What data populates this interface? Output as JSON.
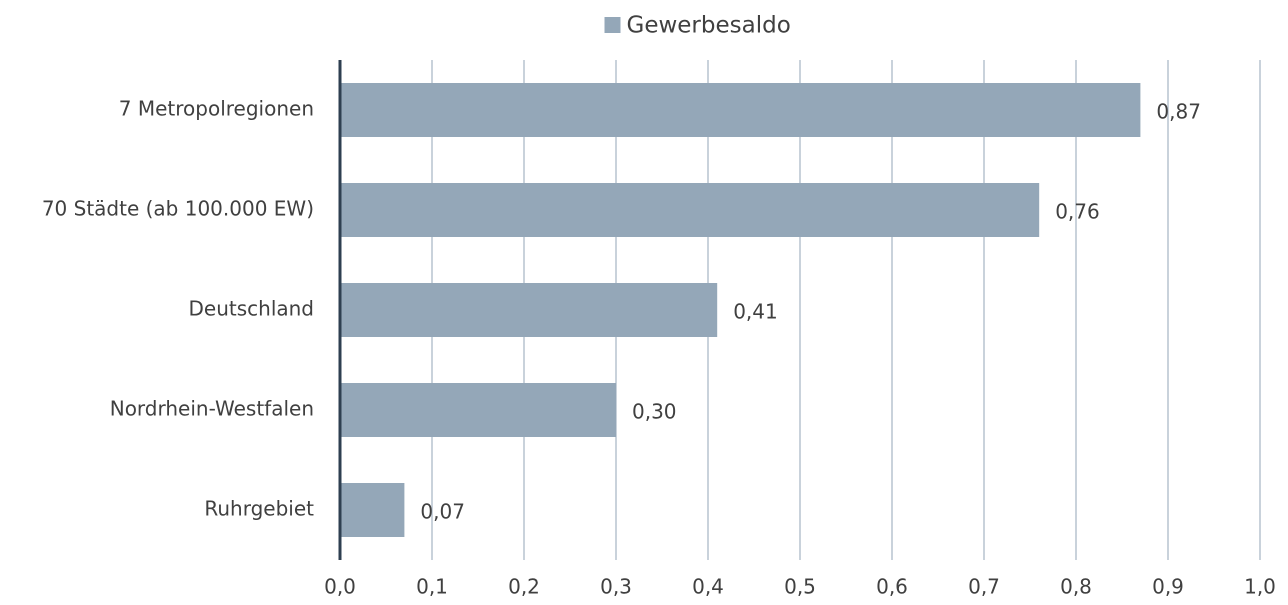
{
  "chart_data": {
    "type": "bar",
    "orientation": "horizontal",
    "categories": [
      "7 Metropolregionen",
      "70 Städte (ab 100.000 EW)",
      "Deutschland",
      "Nordrhein-Westfalen",
      "Ruhrgebiet"
    ],
    "series": [
      {
        "name": "Gewerbesaldo",
        "color": "#94a7b8",
        "values": [
          0.87,
          0.76,
          0.41,
          0.3,
          0.07
        ],
        "value_labels": [
          "0,87",
          "0,76",
          "0,41",
          "0,30",
          "0,07"
        ]
      }
    ],
    "xlim": [
      0,
      1
    ],
    "xticks": [
      {
        "value": 0,
        "label": "0,0"
      },
      {
        "value": 0.1,
        "label": "0,1"
      },
      {
        "value": 0.2,
        "label": "0,2"
      },
      {
        "value": 0.3,
        "label": "0,3"
      },
      {
        "value": 0.4,
        "label": "0,4"
      },
      {
        "value": 0.5,
        "label": "0,5"
      },
      {
        "value": 0.6,
        "label": "0,6"
      },
      {
        "value": 0.7,
        "label": "0,7"
      },
      {
        "value": 0.8,
        "label": "0,8"
      },
      {
        "value": 0.9,
        "label": "0,9"
      },
      {
        "value": 1,
        "label": "1,0"
      }
    ],
    "grid": true,
    "legend": "top"
  }
}
